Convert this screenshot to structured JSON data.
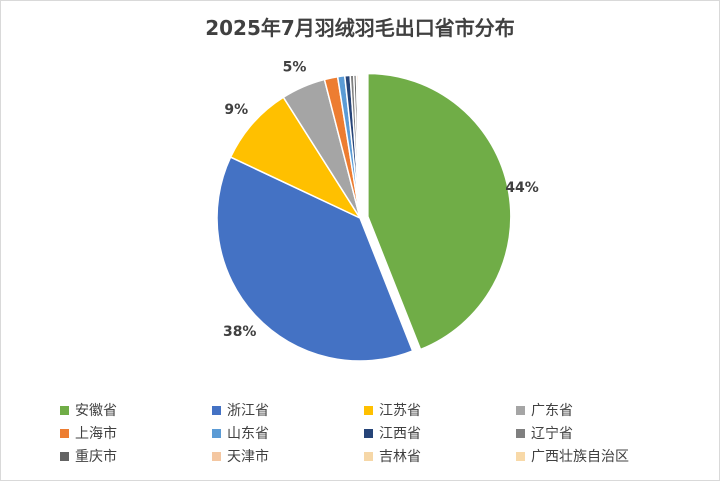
{
  "chart_data": {
    "type": "pie",
    "title": "2025年7月羽绒羽毛出口省市分布",
    "categories": [
      "安徽省",
      "浙江省",
      "江苏省",
      "广东省",
      "上海市",
      "山东省",
      "江西省",
      "辽宁省",
      "重庆市",
      "天津市",
      "吉林省",
      "广西壮族自治区"
    ],
    "values": [
      44,
      38,
      9,
      5,
      1.5,
      0.8,
      0.6,
      0.4,
      0.3,
      0.2,
      0.1,
      0.1
    ],
    "data_labels": [
      "44%",
      "38%",
      "9%",
      "5%",
      "",
      "",
      "",
      "",
      "",
      "",
      "",
      ""
    ],
    "colors": [
      "#70ad47",
      "#4472c4",
      "#ffc000",
      "#a5a5a5",
      "#ed7d31",
      "#5b9bd5",
      "#264478",
      "#7f7f7f",
      "#636363",
      "#f4c7a1",
      "#f6d7a7",
      "#f8d9a8"
    ],
    "exploded_slice": "安徽省",
    "legend_position": "bottom"
  }
}
